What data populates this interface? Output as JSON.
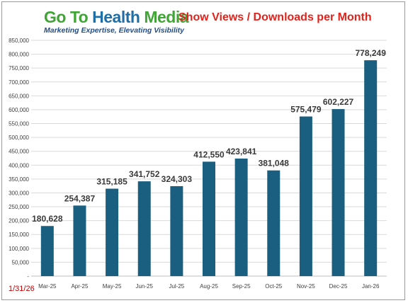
{
  "logo": {
    "word1": "Go To ",
    "word2": "Health ",
    "word3": "Media",
    "tagline": "Marketing Expertise, Elevating Visibility"
  },
  "date_stamp": "1/31/26",
  "colors": {
    "bar": "#1b5f80",
    "title": "#e0231c",
    "grid": "#d9d9d9"
  },
  "chart_data": {
    "type": "bar",
    "title": "Show Views / Downloads per Month",
    "xlabel": "",
    "ylabel": "",
    "categories": [
      "Mar-25",
      "Apr-25",
      "May-25",
      "Jun-25",
      "Jul-25",
      "Aug-25",
      "Sep-25",
      "Oct-25",
      "Nov-25",
      "Dec-25",
      "Jan-26"
    ],
    "values": [
      180628,
      254387,
      315185,
      341752,
      324303,
      412550,
      423841,
      381048,
      575479,
      602227,
      778249
    ],
    "value_labels": [
      "180,628",
      "254,387",
      "315,185",
      "341,752",
      "324,303",
      "412,550",
      "423,841",
      "381,048",
      "575,479",
      "602,227",
      "778,249"
    ],
    "ylim": [
      0,
      850000
    ],
    "yticks": [
      0,
      50000,
      100000,
      150000,
      200000,
      250000,
      300000,
      350000,
      400000,
      450000,
      500000,
      550000,
      600000,
      650000,
      700000,
      750000,
      800000,
      850000
    ],
    "ytick_labels": [
      "-",
      "50,000",
      "100,000",
      "150,000",
      "200,000",
      "250,000",
      "300,000",
      "350,000",
      "400,000",
      "450,000",
      "500,000",
      "550,000",
      "600,000",
      "650,000",
      "700,000",
      "750,000",
      "800,000",
      "850,000"
    ],
    "grid": true,
    "legend": "none"
  }
}
